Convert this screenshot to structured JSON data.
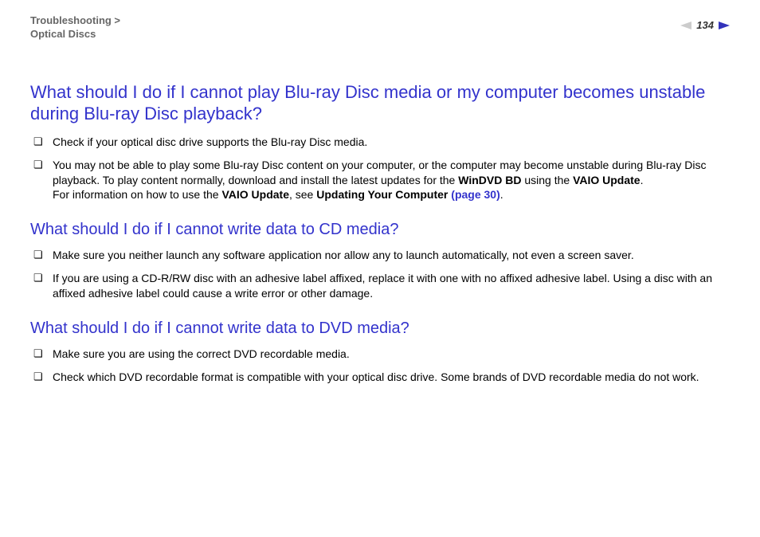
{
  "header": {
    "breadcrumb_line1": "Troubleshooting >",
    "breadcrumb_line2": "Optical Discs",
    "page_number": "134"
  },
  "colors": {
    "heading": "#3333cc",
    "breadcrumb": "#666666",
    "link": "#3333cc",
    "arrow_prev": "#cccccc",
    "arrow_next": "#3333bb"
  },
  "sections": [
    {
      "heading": "What should I do if I cannot play Blu-ray Disc media or my computer becomes unstable during Blu-ray Disc playback?",
      "items": [
        {
          "text": "Check if your optical disc drive supports the Blu-ray Disc media."
        },
        {
          "runs": [
            {
              "t": "You may not be able to play some Blu-ray Disc content on your computer, or the computer may become unstable during Blu-ray Disc playback. To play content normally, download and install the latest updates for the "
            },
            {
              "t": "WinDVD BD",
              "bold": true
            },
            {
              "t": " using the "
            },
            {
              "t": "VAIO Update",
              "bold": true
            },
            {
              "t": "."
            },
            {
              "br": true
            },
            {
              "t": "For information on how to use the "
            },
            {
              "t": "VAIO Update",
              "bold": true
            },
            {
              "t": ", see "
            },
            {
              "t": "Updating Your Computer ",
              "bold": true
            },
            {
              "t": "(page 30)",
              "link": true
            },
            {
              "t": "."
            }
          ]
        }
      ]
    },
    {
      "heading": "What should I do if I cannot write data to CD media?",
      "items": [
        {
          "text": "Make sure you neither launch any software application nor allow any to launch automatically, not even a screen saver."
        },
        {
          "text": "If you are using a CD-R/RW disc with an adhesive label affixed, replace it with one with no affixed adhesive label. Using a disc with an affixed adhesive label could cause a write error or other damage."
        }
      ]
    },
    {
      "heading": "What should I do if I cannot write data to DVD media?",
      "items": [
        {
          "text": "Make sure you are using the correct DVD recordable media."
        },
        {
          "text": "Check which DVD recordable format is compatible with your optical disc drive. Some brands of DVD recordable media do not work."
        }
      ]
    }
  ]
}
